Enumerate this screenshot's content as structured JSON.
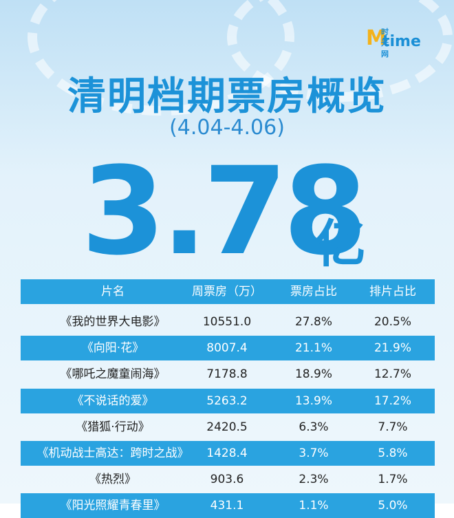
{
  "logo": {
    "mark": "M",
    "cn": "时光网",
    "en": "time"
  },
  "header": {
    "title": "清明档期票房概览",
    "subtitle": "(4.04-4.06)",
    "total": "3.78",
    "unit": "亿"
  },
  "table": {
    "columns": [
      "片名",
      "周票房（万）",
      "票房占比",
      "排片占比"
    ],
    "rows": [
      [
        "《我的世界大电影》",
        "10551.0",
        "27.8%",
        "20.5%"
      ],
      [
        "《向阳·花》",
        "8007.4",
        "21.1%",
        "21.9%"
      ],
      [
        "《哪吒之魔童闹海》",
        "7178.8",
        "18.9%",
        "12.7%"
      ],
      [
        "《不说话的爱》",
        "5263.2",
        "13.9%",
        "17.2%"
      ],
      [
        "《猎狐·行动》",
        "2420.5",
        "6.3%",
        "7.7%"
      ],
      [
        "《机动战士高达：跨时之战》",
        "1428.4",
        "3.7%",
        "5.8%"
      ],
      [
        "《热烈》",
        "903.6",
        "2.3%",
        "1.7%"
      ],
      [
        "《阳光照耀青春里》",
        "431.1",
        "1.1%",
        "5.0%"
      ]
    ]
  }
}
